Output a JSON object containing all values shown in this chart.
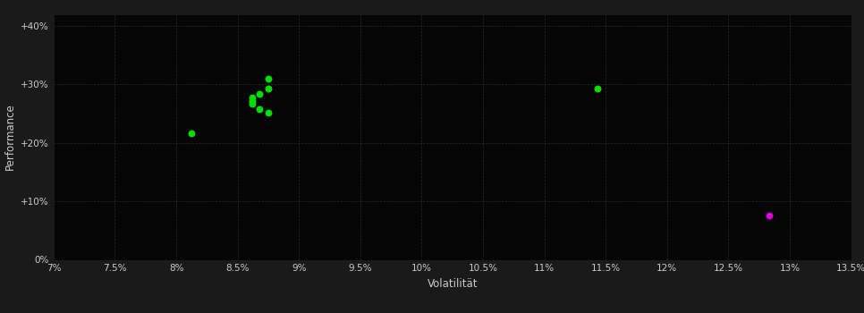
{
  "background_color": "#1a1a1a",
  "plot_bg_color": "#050505",
  "grid_color": "#2a2a2a",
  "text_color": "#cccccc",
  "xlabel": "Volatilität",
  "ylabel": "Performance",
  "xlim": [
    0.07,
    0.135
  ],
  "ylim": [
    0.0,
    0.42
  ],
  "xticks": [
    0.07,
    0.075,
    0.08,
    0.085,
    0.09,
    0.095,
    0.1,
    0.105,
    0.11,
    0.115,
    0.12,
    0.125,
    0.13,
    0.135
  ],
  "yticks": [
    0.0,
    0.1,
    0.2,
    0.3,
    0.4
  ],
  "ytick_labels": [
    "0%",
    "+10%",
    "+20%",
    "+30%",
    "+40%"
  ],
  "xtick_labels": [
    "7%",
    "7.5%",
    "8%",
    "8.5%",
    "9%",
    "9.5%",
    "10%",
    "10.5%",
    "11%",
    "11.5%",
    "12%",
    "12.5%",
    "13%",
    "13.5%"
  ],
  "green_points": [
    [
      0.0812,
      0.217
    ],
    [
      0.0875,
      0.31
    ],
    [
      0.0875,
      0.293
    ],
    [
      0.0868,
      0.283
    ],
    [
      0.0862,
      0.278
    ],
    [
      0.0862,
      0.272
    ],
    [
      0.0862,
      0.267
    ],
    [
      0.0868,
      0.258
    ],
    [
      0.0875,
      0.252
    ],
    [
      0.1143,
      0.292
    ]
  ],
  "magenta_point": [
    0.1283,
    0.075
  ],
  "green_color": "#00dd00",
  "magenta_color": "#dd00dd",
  "point_size": 22
}
